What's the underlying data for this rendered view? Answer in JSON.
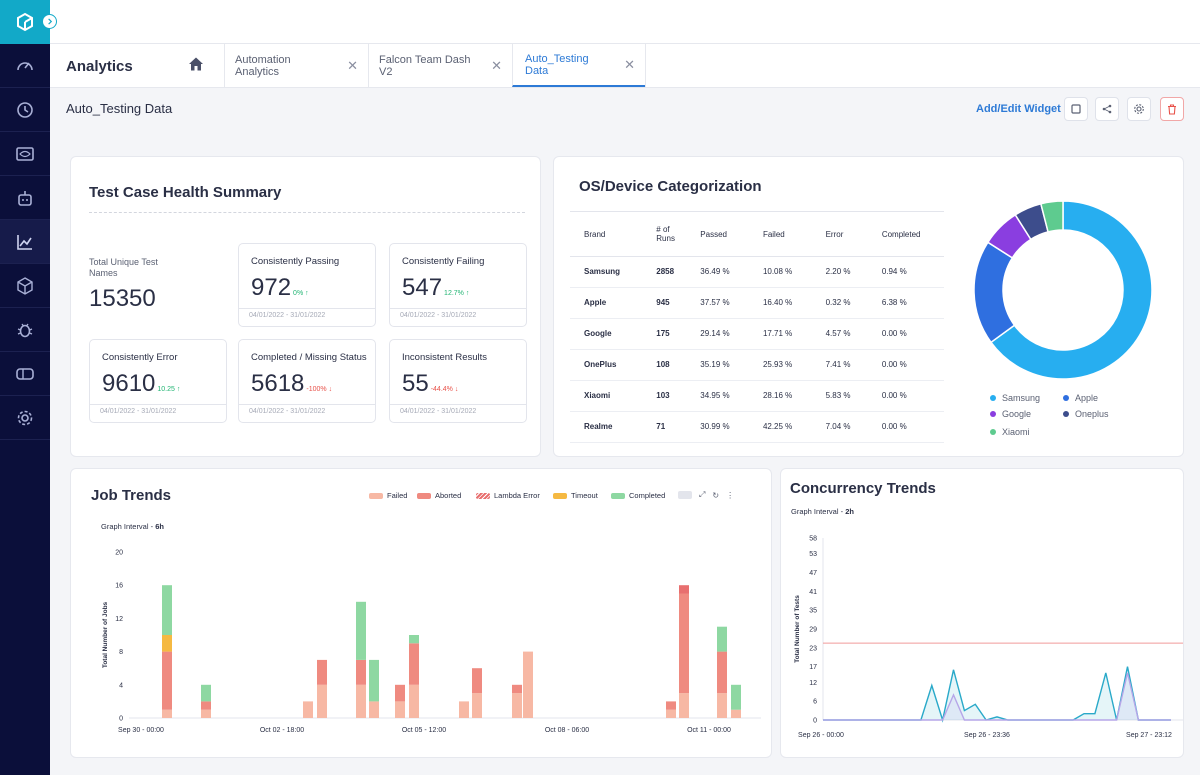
{
  "app": {
    "title": "Analytics"
  },
  "tabs": [
    {
      "label": "Automation Analytics"
    },
    {
      "label": "Falcon Team Dash V2"
    },
    {
      "label": "Auto_Testing Data"
    }
  ],
  "dashboard": {
    "title": "Auto_Testing Data",
    "add_edit_label": "Add/Edit Widget"
  },
  "health": {
    "title": "Test Case Health Summary",
    "total_label": "Total Unique Test Names",
    "total_value": "15350",
    "stats": [
      {
        "label": "Consistently Passing",
        "value": "972",
        "delta": "0% ↑",
        "delta_color": "green",
        "date": "04/01/2022 - 31/01/2022"
      },
      {
        "label": "Consistently Failing",
        "value": "547",
        "delta": "12.7% ↑",
        "delta_color": "green",
        "date": "04/01/2022 - 31/01/2022"
      },
      {
        "label": "Consistently Error",
        "value": "9610",
        "delta": "10.25 ↑",
        "delta_color": "green",
        "date": "04/01/2022 - 31/01/2022"
      },
      {
        "label": "Completed / Missing Status",
        "value": "5618",
        "delta": "-100% ↓",
        "delta_color": "red",
        "date": "04/01/2022 - 31/01/2022"
      },
      {
        "label": "Inconsistent Results",
        "value": "55",
        "delta": "-44.4% ↓",
        "delta_color": "red",
        "date": "04/01/2022 - 31/01/2022"
      }
    ]
  },
  "os": {
    "title": "OS/Device Categorization",
    "headers": [
      "Brand",
      "# of Runs",
      "Passed",
      "Failed",
      "Error",
      "Completed"
    ],
    "rows": [
      [
        "Samsung",
        "2858",
        "36.49 %",
        "10.08 %",
        "2.20 %",
        "0.94 %"
      ],
      [
        "Apple",
        "945",
        "37.57 %",
        "16.40 %",
        "0.32 %",
        "6.38 %"
      ],
      [
        "Google",
        "175",
        "29.14 %",
        "17.71 %",
        "4.57 %",
        "0.00 %"
      ],
      [
        "OnePlus",
        "108",
        "35.19 %",
        "25.93 %",
        "7.41 %",
        "0.00 %"
      ],
      [
        "Xiaomi",
        "103",
        "34.95 %",
        "28.16 %",
        "5.83 %",
        "0.00 %"
      ],
      [
        "Realme",
        "71",
        "30.99 %",
        "42.25 %",
        "7.04 %",
        "0.00 %"
      ]
    ],
    "donut": [
      {
        "name": "Samsung",
        "value": 65,
        "color": "#27aef0"
      },
      {
        "name": "Apple",
        "value": 19,
        "color": "#2f6fe0"
      },
      {
        "name": "Google",
        "value": 7,
        "color": "#8a3ee0"
      },
      {
        "name": "Oneplus",
        "value": 5,
        "color": "#3d4d8c"
      },
      {
        "name": "Xiaomi",
        "value": 4,
        "color": "#5ecb8f"
      }
    ]
  },
  "job_trends": {
    "title": "Job Trends",
    "interval_label": "Graph Interval - ",
    "interval_value": "6h",
    "legend": [
      {
        "name": "Failed",
        "color": "#f7b8a4"
      },
      {
        "name": "Aborted",
        "color": "#ef8a80"
      },
      {
        "name": "Lambda Error",
        "color": "#e86f6f"
      },
      {
        "name": "Timeout",
        "color": "#f5b942"
      },
      {
        "name": "Completed",
        "color": "#8ed8a2"
      }
    ]
  },
  "concurrency": {
    "title": "Concurrency Trends",
    "interval_label": "Graph Interval - ",
    "interval_value": "2h"
  },
  "chart_data": [
    {
      "type": "bar",
      "stacked": true,
      "ylabel": "Total Number of Jobs",
      "ylim": [
        0,
        20
      ],
      "yticks": [
        0,
        4,
        8,
        12,
        16,
        20
      ],
      "xtick_labels": [
        "Sep 30 - 00:00",
        "Oct 02 - 18:00",
        "Oct 05 - 12:00",
        "Oct 08 - 06:00",
        "Oct 11 - 00:00"
      ],
      "bars": [
        {
          "failed": 1,
          "aborted": 7,
          "timeout": 2,
          "completed": 6
        },
        {
          "failed": 1,
          "aborted": 1,
          "completed": 2
        },
        {
          "failed": 2
        },
        {
          "failed": 4,
          "aborted": 3
        },
        {
          "failed": 4,
          "aborted": 3,
          "completed": 7
        },
        {
          "failed": 2,
          "completed": 5
        },
        {
          "failed": 2,
          "aborted": 2
        },
        {
          "failed": 4,
          "aborted": 5,
          "completed": 1
        },
        {
          "failed": 3,
          "aborted": 3
        },
        {
          "failed": 2
        },
        {
          "failed": 3,
          "aborted": 1
        },
        {
          "failed": 8
        },
        {
          "failed": 1,
          "aborted": 1
        },
        {
          "failed": 3,
          "aborted": 12,
          "lambda": 1
        },
        {
          "failed": 3,
          "aborted": 5,
          "completed": 3
        },
        {
          "failed": 1,
          "completed": 3
        }
      ]
    },
    {
      "type": "line",
      "ylabel": "Total Number of Tests",
      "ylim": [
        0,
        58
      ],
      "yticks": [
        0,
        6,
        12,
        17,
        23,
        29,
        35,
        41,
        47,
        53,
        58
      ],
      "xtick_labels": [
        "Sep 26 - 00:00",
        "Sep 26 - 23:36",
        "Sep 27 - 23:12"
      ],
      "threshold": 24.5,
      "series": [
        {
          "values": [
            0,
            0,
            0,
            0,
            0,
            0,
            0,
            0,
            0,
            0,
            11,
            0,
            16,
            3,
            5,
            0,
            1,
            0,
            0,
            0,
            0,
            0,
            0,
            0,
            2,
            2,
            15,
            0,
            17,
            0,
            0,
            0,
            0
          ]
        },
        {
          "values": [
            0,
            0,
            0,
            0,
            0,
            0,
            0,
            0,
            0,
            0,
            0,
            0,
            8,
            0,
            0,
            0,
            0,
            0,
            0,
            0,
            0,
            0,
            0,
            0,
            0,
            0,
            0,
            0,
            15,
            0,
            0,
            0,
            0
          ]
        }
      ]
    }
  ]
}
